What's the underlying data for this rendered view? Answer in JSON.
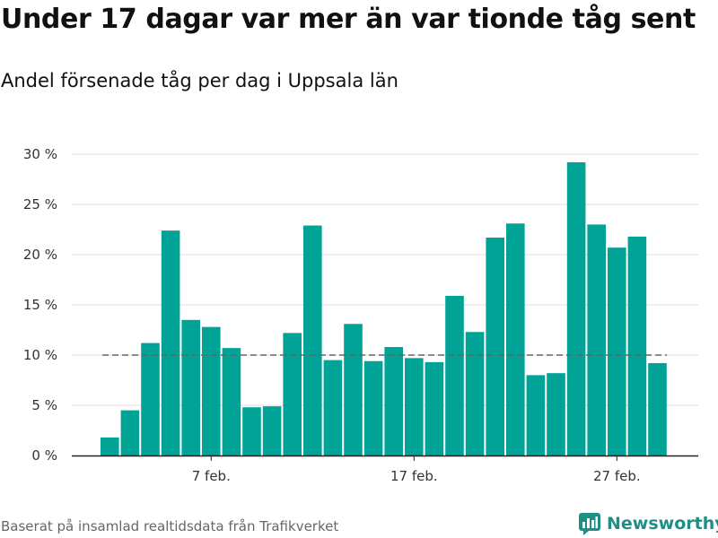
{
  "title": "Under 17 dagar var mer än var tionde tåg sent",
  "subtitle": "Andel försenade tåg per dag i Uppsala län",
  "source": "Baserat på insamlad realtidsdata från Trafikverket",
  "logo_text": "Newsworthy",
  "colors": {
    "bar": "#00a396",
    "reference_line": "#666666",
    "grid": "#dddddd",
    "logo": "#1f8f85"
  },
  "chart_data": {
    "type": "bar",
    "title": "Under 17 dagar var mer än var tionde tåg sent",
    "subtitle": "Andel försenade tåg per dag i Uppsala län",
    "xlabel": "",
    "ylabel": "",
    "x": [
      "2 feb.",
      "3 feb.",
      "4 feb.",
      "5 feb.",
      "6 feb.",
      "7 feb.",
      "8 feb.",
      "9 feb.",
      "10 feb.",
      "11 feb.",
      "12 feb.",
      "13 feb.",
      "14 feb.",
      "15 feb.",
      "16 feb.",
      "17 feb.",
      "18 feb.",
      "19 feb.",
      "20 feb.",
      "21 feb.",
      "22 feb.",
      "23 feb.",
      "24 feb.",
      "25 feb.",
      "26 feb.",
      "27 feb.",
      "28 feb.",
      "1 mar."
    ],
    "values": [
      1.8,
      4.5,
      11.2,
      22.4,
      13.5,
      12.8,
      10.7,
      4.8,
      4.9,
      12.2,
      22.9,
      9.5,
      13.1,
      9.4,
      10.8,
      9.7,
      9.3,
      15.9,
      12.3,
      21.7,
      23.1,
      8.0,
      8.2,
      29.2,
      23.0,
      20.7,
      21.8,
      9.2
    ],
    "x_ticks": [
      "7 feb.",
      "17 feb.",
      "27 feb."
    ],
    "y_ticks": [
      "0 %",
      "5 %",
      "10 %",
      "15 %",
      "20 %",
      "25 %",
      "30 %"
    ],
    "ylim": [
      0,
      30
    ],
    "reference_line": {
      "value": 10,
      "style": "dashed"
    },
    "grid": true,
    "legend": "none"
  }
}
